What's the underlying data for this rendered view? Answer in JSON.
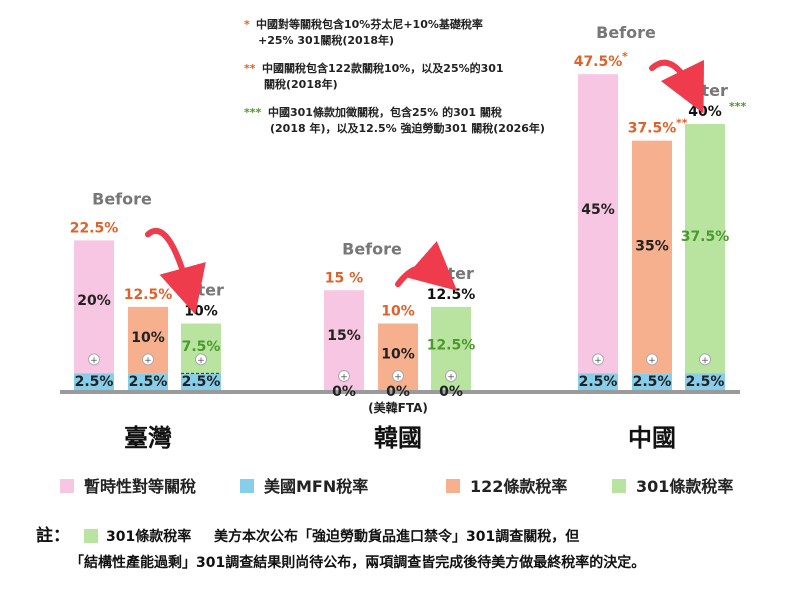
{
  "chart_data": {
    "type": "bar",
    "stacked": true,
    "ylim": [
      0,
      50
    ],
    "colors": {
      "reciprocal": "#f7c6e3",
      "mfn": "#87ceeb",
      "s122": "#f6b08e",
      "s301": "#b9e4a0",
      "orange_text": "#e0622a",
      "green_text": "#4a9a2e",
      "arrow": "#ee3c4c",
      "axis": "#9a9a9a",
      "before_after": "#777777"
    },
    "legend": [
      {
        "key": "reciprocal",
        "label": "暫時性對等關稅"
      },
      {
        "key": "mfn",
        "label": "美國MFN稅率"
      },
      {
        "key": "s122",
        "label": "122條款稅率"
      },
      {
        "key": "s301",
        "label": "301條款稅率"
      }
    ],
    "notes": [
      {
        "marker": "*",
        "marker_color": "#e0622a",
        "lines": [
          "中國對等關稅包含10%芬太尼+10%基礎稅率",
          "+25% 301關稅(2018年)"
        ]
      },
      {
        "marker": "**",
        "marker_color": "#e0622a",
        "lines": [
          "中國關稅包含122款關稅10%，以及25%的301",
          "關稅(2018年)"
        ]
      },
      {
        "marker": "***",
        "marker_color": "#4a9a2e",
        "lines": [
          "中國301條款加徵關稅，包含25% 的301 關稅",
          "(2018 年)，以及12.5% 強迫勞動301 關稅(2026年)"
        ]
      }
    ],
    "groups": [
      {
        "name": "臺灣",
        "sublabel": "",
        "before_label": "Before",
        "after_label": "After",
        "bars": [
          {
            "stage": "before",
            "mfn": 2.5,
            "main_key": "reciprocal",
            "main": 20,
            "mfn_label": "2.5%",
            "main_label": "20%",
            "total_label": "22.5%",
            "total_color": "orange",
            "marker": ""
          },
          {
            "stage": "mid",
            "mfn": 2.5,
            "main_key": "s122",
            "main": 10,
            "mfn_label": "2.5%",
            "main_label": "10%",
            "total_label": "12.5%",
            "total_color": "orange",
            "marker": ""
          },
          {
            "stage": "after",
            "mfn": 2.5,
            "main_key": "s301",
            "main": 7.5,
            "mfn_label": "2.5%",
            "main_label": "7.5%",
            "total_label": "10%",
            "total_color": "black",
            "marker": "",
            "dashed_mfn": true
          }
        ]
      },
      {
        "name": "韓國",
        "sublabel": "(美韓FTA)",
        "before_label": "Before",
        "after_label": "After",
        "bars": [
          {
            "stage": "before",
            "mfn": 0,
            "main_key": "reciprocal",
            "main": 15,
            "mfn_label": "0%",
            "main_label": "15%",
            "total_label": "15 %",
            "total_color": "orange",
            "marker": ""
          },
          {
            "stage": "mid",
            "mfn": 0,
            "main_key": "s122",
            "main": 10,
            "mfn_label": "0%",
            "main_label": "10%",
            "total_label": "10%",
            "total_color": "orange",
            "marker": ""
          },
          {
            "stage": "after",
            "mfn": 0,
            "main_key": "s301",
            "main": 12.5,
            "mfn_label": "0%",
            "main_label": "12.5%",
            "total_label": "12.5%",
            "total_color": "black",
            "marker": ""
          }
        ]
      },
      {
        "name": "中國",
        "sublabel": "",
        "before_label": "Before",
        "after_label": "After",
        "bars": [
          {
            "stage": "before",
            "mfn": 2.5,
            "main_key": "reciprocal",
            "main": 45,
            "mfn_label": "2.5%",
            "main_label": "45%",
            "total_label": "47.5%",
            "total_color": "orange",
            "marker": "*"
          },
          {
            "stage": "mid",
            "mfn": 2.5,
            "main_key": "s122",
            "main": 35,
            "mfn_label": "2.5%",
            "main_label": "35%",
            "total_label": "37.5%",
            "total_color": "orange",
            "marker": "**"
          },
          {
            "stage": "after",
            "mfn": 2.5,
            "main_key": "s301",
            "main": 37.5,
            "mfn_label": "2.5%",
            "main_label": "37.5%",
            "total_label": "40%",
            "total_color": "black",
            "marker": "***"
          }
        ]
      }
    ],
    "footnote": {
      "prefix": "註：",
      "legend_label": "301條款稅率",
      "line1": "美方本次公布「強迫勞動貨品進口禁令」301調查關稅，但",
      "line2": "「結構性產能過剩」301調查結果則尚待公布，兩項調查皆完成後待美方做最終稅率的決定。"
    },
    "plus_glyph": "+"
  }
}
